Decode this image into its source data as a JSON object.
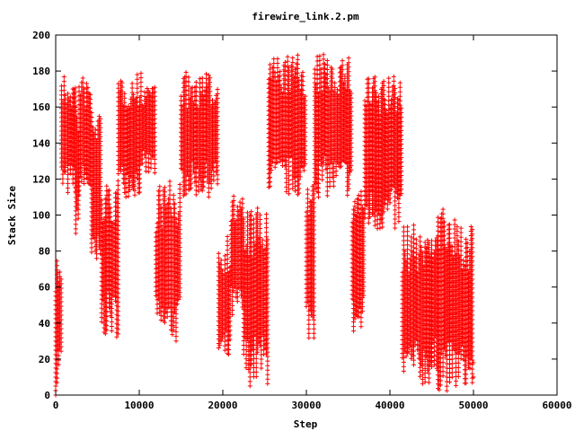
{
  "chart_data": {
    "type": "scatter",
    "title": "firewire_link.2.pm",
    "xlabel": "Step",
    "ylabel": "Stack Size",
    "xlim": [
      0,
      60000
    ],
    "ylim": [
      0,
      200
    ],
    "x_ticks": [
      0,
      10000,
      20000,
      30000,
      40000,
      50000,
      60000
    ],
    "y_ticks": [
      0,
      20,
      40,
      60,
      80,
      100,
      120,
      140,
      160,
      180,
      200
    ],
    "grid": false,
    "legend": "none",
    "marker": "+",
    "marker_color": "#ff0000",
    "axis_color": "#000000",
    "series": [
      {
        "segments": [
          {
            "x": [
              0,
              200
            ],
            "low": 0,
            "high": 80
          },
          {
            "x": [
              200,
              700
            ],
            "low": 10,
            "high": 80
          },
          {
            "x": [
              700,
              2400
            ],
            "low": 110,
            "high": 178
          },
          {
            "x": [
              2400,
              2800
            ],
            "low": 78,
            "high": 170
          },
          {
            "x": [
              2800,
              4300
            ],
            "low": 110,
            "high": 178
          },
          {
            "x": [
              4300,
              5500
            ],
            "low": 60,
            "high": 165
          },
          {
            "x": [
              5500,
              7500
            ],
            "low": 32,
            "high": 120
          },
          {
            "x": [
              7500,
              10500
            ],
            "low": 110,
            "high": 180
          },
          {
            "x": [
              10500,
              12000
            ],
            "low": 120,
            "high": 178
          },
          {
            "x": [
              12000,
              15000
            ],
            "low": 28,
            "high": 120
          },
          {
            "x": [
              15000,
              19500
            ],
            "low": 110,
            "high": 180
          },
          {
            "x": [
              19500,
              21000
            ],
            "low": 15,
            "high": 90
          },
          {
            "x": [
              21000,
              22500
            ],
            "low": 40,
            "high": 115
          },
          {
            "x": [
              22500,
              25500
            ],
            "low": 5,
            "high": 105
          },
          {
            "x": [
              25500,
              30000
            ],
            "low": 110,
            "high": 190
          },
          {
            "x": [
              30000,
              31000
            ],
            "low": 30,
            "high": 120
          },
          {
            "x": [
              31000,
              35500
            ],
            "low": 110,
            "high": 190
          },
          {
            "x": [
              35500,
              37000
            ],
            "low": 30,
            "high": 120
          },
          {
            "x": [
              37000,
              41500
            ],
            "low": 90,
            "high": 180
          },
          {
            "x": [
              41500,
              45000
            ],
            "low": 5,
            "high": 95
          },
          {
            "x": [
              45000,
              47000
            ],
            "low": 2,
            "high": 108
          },
          {
            "x": [
              47000,
              50000
            ],
            "low": 2,
            "high": 98
          }
        ],
        "points": [
          {
            "x": 50000,
            "y": 18
          },
          {
            "x": 50000,
            "y": 10
          }
        ]
      }
    ]
  }
}
